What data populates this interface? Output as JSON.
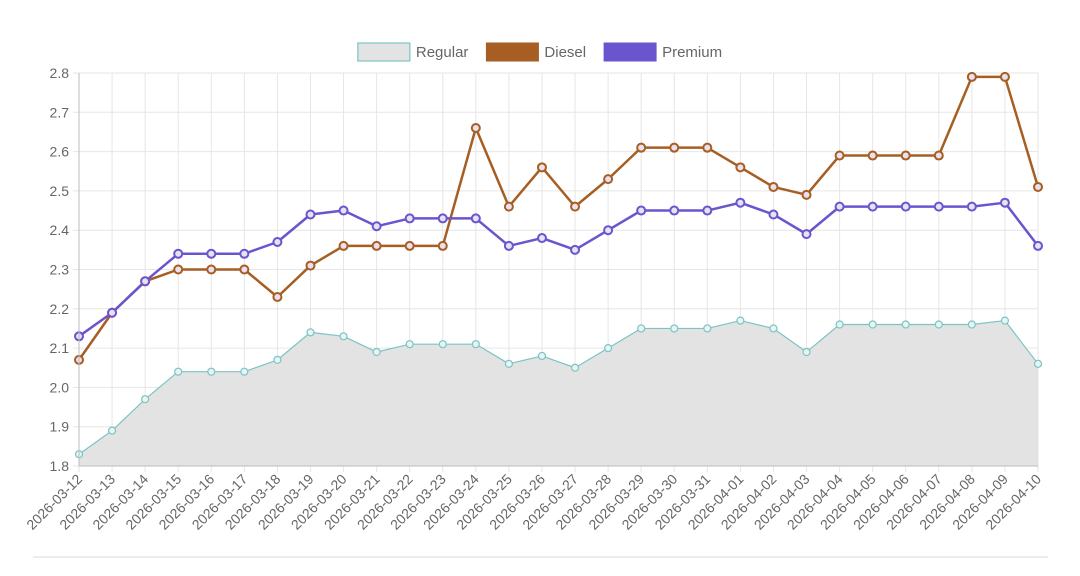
{
  "chart_data": {
    "type": "line",
    "title": "",
    "xlabel": "",
    "ylabel": "",
    "ylim": [
      1.8,
      2.8
    ],
    "y_ticks": [
      "1.8",
      "1.9",
      "2.0",
      "2.1",
      "2.2",
      "2.3",
      "2.4",
      "2.5",
      "2.6",
      "2.7",
      "2.8"
    ],
    "legend_position": "top-center",
    "grid": true,
    "categories": [
      "2026-03-12",
      "2026-03-13",
      "2026-03-14",
      "2026-03-15",
      "2026-03-16",
      "2026-03-17",
      "2026-03-18",
      "2026-03-19",
      "2026-03-20",
      "2026-03-21",
      "2026-03-22",
      "2026-03-23",
      "2026-03-24",
      "2026-03-25",
      "2026-03-26",
      "2026-03-27",
      "2026-03-28",
      "2026-03-29",
      "2026-03-30",
      "2026-03-31",
      "2026-04-01",
      "2026-04-02",
      "2026-04-03",
      "2026-04-04",
      "2026-04-05",
      "2026-04-06",
      "2026-04-07",
      "2026-04-08",
      "2026-04-09",
      "2026-04-10"
    ],
    "series": [
      {
        "name": "Regular",
        "style": "area",
        "color": "#7cc4c4",
        "fill": "#e3e3e3",
        "values": [
          1.83,
          1.89,
          1.97,
          2.04,
          2.04,
          2.04,
          2.07,
          2.14,
          2.13,
          2.09,
          2.11,
          2.11,
          2.11,
          2.06,
          2.08,
          2.05,
          2.1,
          2.15,
          2.15,
          2.15,
          2.17,
          2.15,
          2.09,
          2.16,
          2.16,
          2.16,
          2.16,
          2.16,
          2.17,
          2.06
        ]
      },
      {
        "name": "Diesel",
        "style": "line",
        "color": "#a65e22",
        "values": [
          2.07,
          2.19,
          2.27,
          2.3,
          2.3,
          2.3,
          2.23,
          2.31,
          2.36,
          2.36,
          2.36,
          2.36,
          2.66,
          2.46,
          2.56,
          2.46,
          2.53,
          2.61,
          2.61,
          2.61,
          2.56,
          2.51,
          2.49,
          2.59,
          2.59,
          2.59,
          2.59,
          2.79,
          2.79,
          2.51
        ]
      },
      {
        "name": "Premium",
        "style": "line",
        "color": "#6a55cf",
        "values": [
          2.13,
          2.19,
          2.27,
          2.34,
          2.34,
          2.34,
          2.37,
          2.44,
          2.45,
          2.41,
          2.43,
          2.43,
          2.43,
          2.36,
          2.38,
          2.35,
          2.4,
          2.45,
          2.45,
          2.45,
          2.47,
          2.44,
          2.39,
          2.46,
          2.46,
          2.46,
          2.46,
          2.46,
          2.47,
          2.36
        ]
      }
    ]
  }
}
